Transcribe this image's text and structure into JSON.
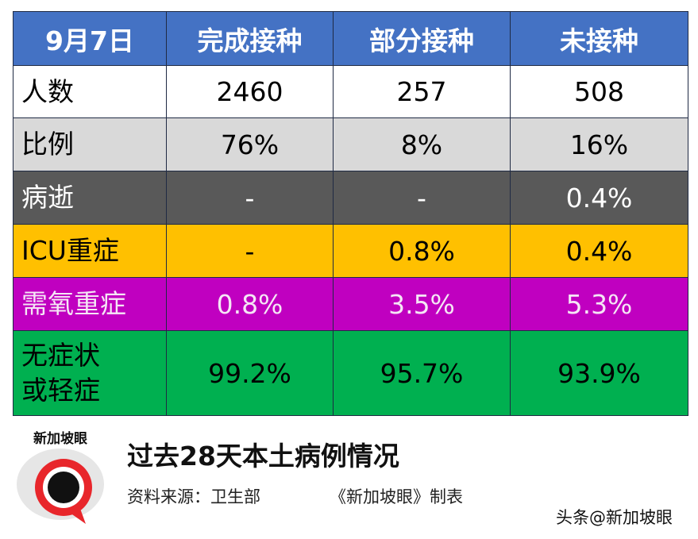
{
  "table": {
    "header": [
      "9月7日",
      "完成接种",
      "部分接种",
      "未接种"
    ],
    "rows": [
      [
        [
          "人数"
        ],
        "2460",
        "257",
        "508"
      ],
      [
        [
          "比例"
        ],
        "76%",
        "8%",
        "16%"
      ],
      [
        [
          "病逝"
        ],
        "-",
        "-",
        "0.4%"
      ],
      [
        [
          "ICU重症"
        ],
        "-",
        "0.8%",
        "0.4%"
      ],
      [
        [
          "需氧重症"
        ],
        "0.8%",
        "3.5%",
        "5.3%"
      ],
      [
        [
          "无症状",
          "或轻症"
        ],
        "99.2%",
        "95.7%",
        "93.9%"
      ]
    ]
  },
  "footer": {
    "logo_text": "新加坡眼",
    "title": "过去28天本土病例情况",
    "source": "资料来源：卫生部",
    "maker": "《新加坡眼》制表",
    "watermark": "头条@新加坡眼"
  }
}
